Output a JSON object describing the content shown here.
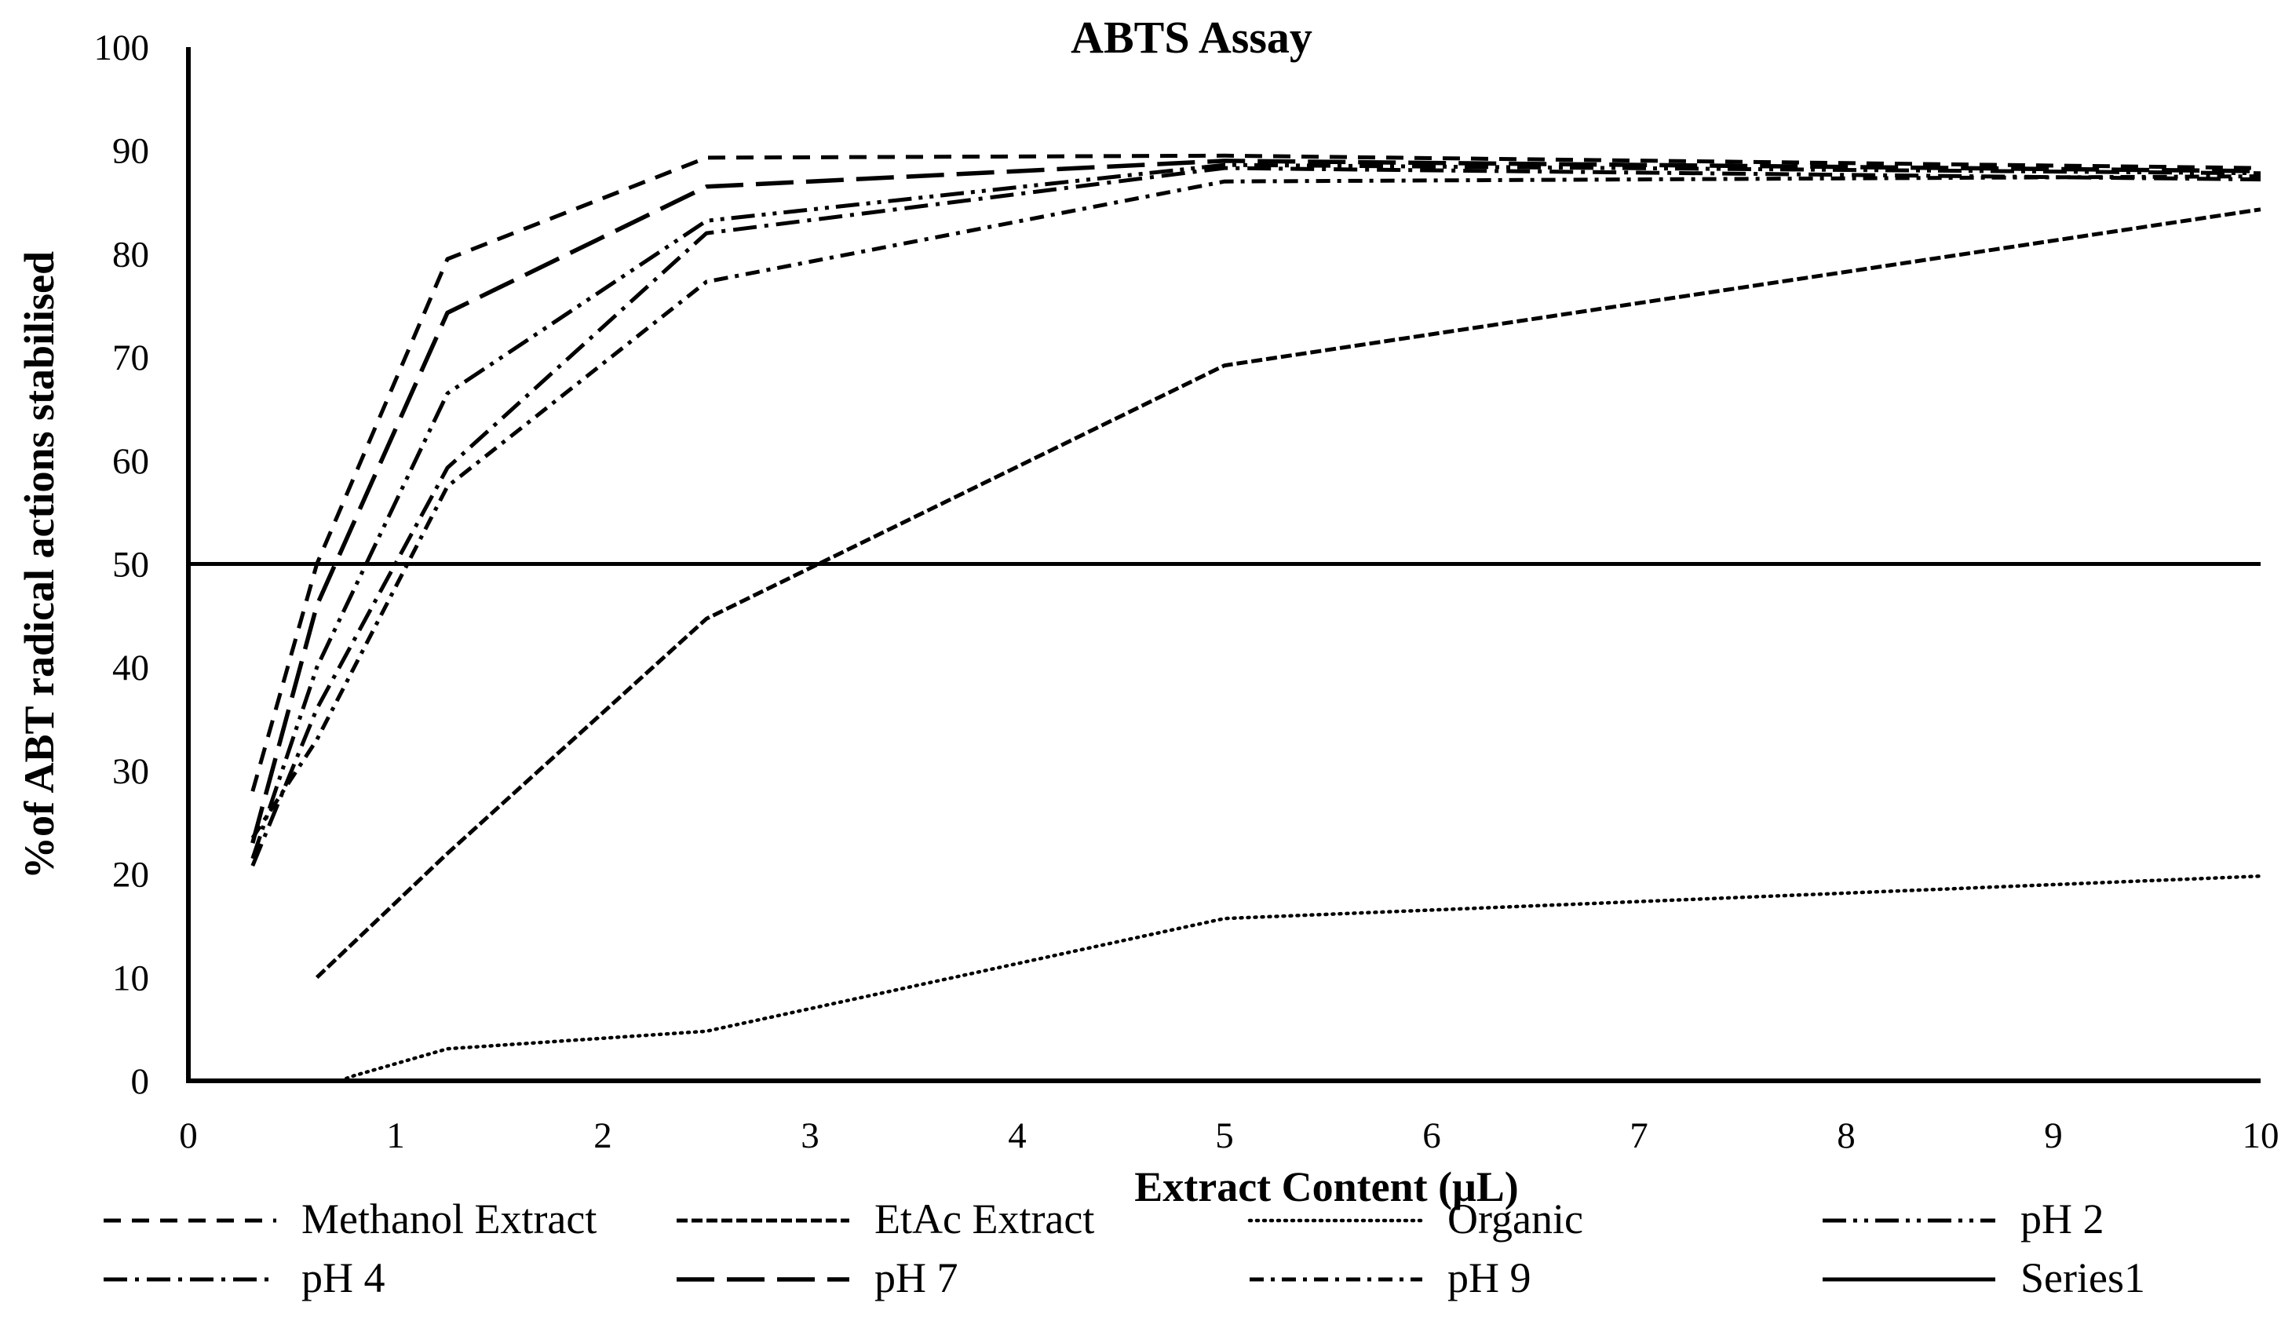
{
  "chart_data": {
    "type": "line",
    "title": "ABTS Assay",
    "xlabel": "Extract Content (μL)",
    "ylabel": "%of ABT radical actions stabilised",
    "xlim": [
      0,
      10
    ],
    "ylim": [
      0,
      100
    ],
    "x_ticks": [
      "0",
      "1",
      "2",
      "3",
      "4",
      "5",
      "6",
      "7",
      "8",
      "9",
      "10"
    ],
    "y_ticks": [
      "0",
      "10",
      "20",
      "30",
      "40",
      "50",
      "60",
      "70",
      "80",
      "90",
      "100"
    ],
    "grid": false,
    "legend_position": "bottom",
    "series": [
      {
        "name": "Methanol Extract",
        "style": "dash",
        "x": [
          0.31,
          0.62,
          1.25,
          2.5,
          5,
          10
        ],
        "y": [
          28,
          50,
          79.5,
          89.3,
          89.5,
          88.3
        ]
      },
      {
        "name": "EtAc Extract",
        "style": "dense-dash",
        "x": [
          0.62,
          1.25,
          2.5,
          5,
          10
        ],
        "y": [
          10,
          22,
          44.7,
          69.2,
          84.3
        ]
      },
      {
        "name": "Organic",
        "style": "dot",
        "x": [
          0.73,
          0.8,
          1.25,
          2.5,
          5,
          10
        ],
        "y": [
          0,
          0.5,
          3.1,
          4.8,
          15.7,
          19.8
        ]
      },
      {
        "name": "pH 2",
        "style": "dash-dot-dot",
        "x": [
          0.31,
          0.62,
          1.25,
          2.5,
          5,
          10
        ],
        "y": [
          21.5,
          40,
          66.5,
          83.2,
          88.6,
          87.8
        ]
      },
      {
        "name": "pH 4",
        "style": "dash-dot",
        "x": [
          0.31,
          0.62,
          1.25,
          2.5,
          5,
          10
        ],
        "y": [
          20.8,
          36,
          59.3,
          82,
          88.3,
          87.2
        ]
      },
      {
        "name": "pH 7",
        "style": "long-dash",
        "x": [
          0.31,
          0.62,
          1.25,
          2.5,
          5,
          10
        ],
        "y": [
          23,
          46,
          74.3,
          86.5,
          89,
          88
        ]
      },
      {
        "name": "pH 9",
        "style": "short-dash-dot",
        "x": [
          0.31,
          0.62,
          1.25,
          2.5,
          5,
          10
        ],
        "y": [
          23.5,
          33,
          57.5,
          77.3,
          87,
          87.5
        ]
      },
      {
        "name": "Series1",
        "style": "solid",
        "x": [
          0,
          10
        ],
        "y": [
          50,
          50
        ]
      }
    ]
  }
}
